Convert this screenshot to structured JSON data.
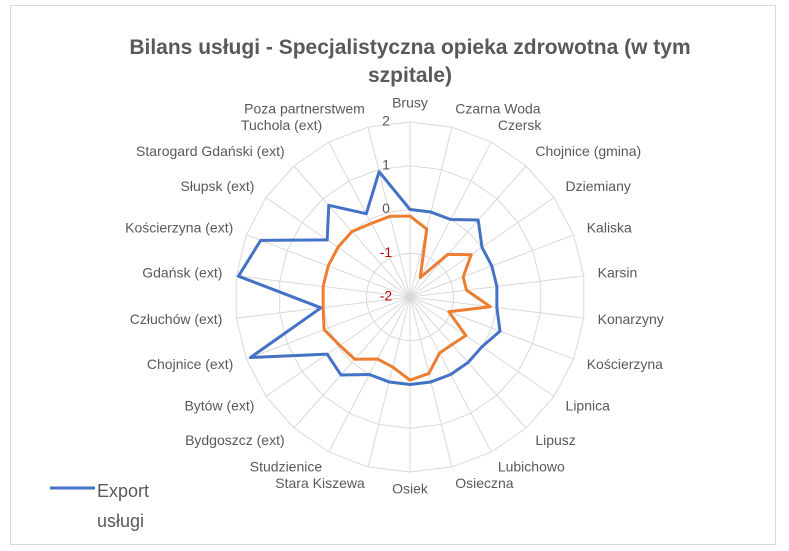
{
  "chart_data": {
    "type": "radar",
    "title": "Bilans usługi - Specjalistyczna opieka zdrowotna (w tym szpitale)",
    "categories": [
      "Brusy",
      "Czarna Woda",
      "Czersk",
      "Chojnice (gmina)",
      "Dziemiany",
      "Kaliska",
      "Karsin",
      "Konarzyny",
      "Kościerzyna",
      "Lipnica",
      "Lipusz",
      "Lubichowo",
      "Osieczna",
      "Osiek",
      "Stara Kiszewa",
      "Studzienice",
      "Bydgoszcz (ext)",
      "Bytów (ext)",
      "Chojnice (ext)",
      "Człuchów (ext)",
      "Gdańsk (ext)",
      "Kościerzyna (ext)",
      "Słupsk (ext)",
      "Starogard Gdański (ext)",
      "Tuchola (ext)",
      "Poza partnerstwem"
    ],
    "series": [
      {
        "name": "Export usługi",
        "color": "#4472c4",
        "values": [
          0,
          0,
          0,
          0.35,
          0,
          0,
          0,
          0,
          0.2,
          0,
          0,
          0,
          0,
          0,
          0,
          0,
          0.38,
          0.3,
          1.9,
          0.05,
          1.95,
          1.65,
          0.3,
          0.8,
          0.15,
          0.95
        ]
      },
      {
        "color": "#ed7d31",
        "values": [
          -0.15,
          -0.4,
          -1.5,
          -0.7,
          -0.3,
          -0.7,
          -0.7,
          -0.15,
          -1.05,
          -0.45,
          -0.55,
          -0.55,
          -0.2,
          -0.1,
          -0.35,
          -0.4,
          -0.1,
          -0.05,
          0.1,
          0,
          0,
          0,
          0,
          0,
          -0.1,
          -0.1
        ]
      }
    ],
    "ylim": [
      -2,
      2
    ],
    "yticks": [
      -2,
      -1,
      0,
      1,
      2
    ],
    "grid": true,
    "legend": "bottom-left"
  }
}
